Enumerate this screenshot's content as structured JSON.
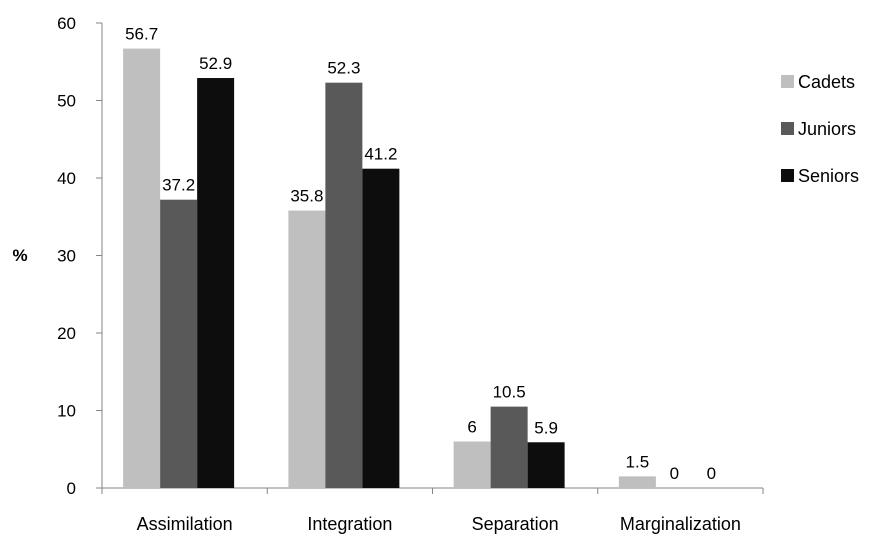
{
  "chart_data": {
    "type": "bar",
    "title": "",
    "xlabel": "",
    "ylabel": "%",
    "ylim": [
      0,
      60
    ],
    "yticks": [
      0,
      10,
      20,
      30,
      40,
      50,
      60
    ],
    "categories": [
      "Assimilation",
      "Integration",
      "Separation",
      "Marginalization"
    ],
    "series": [
      {
        "name": "Cadets",
        "color": "#bfbfbf",
        "values": [
          56.7,
          35.8,
          6,
          1.5
        ]
      },
      {
        "name": "Juniors",
        "color": "#595959",
        "values": [
          37.2,
          52.3,
          10.5,
          0
        ]
      },
      {
        "name": "Seniors",
        "color": "#0d0d0d",
        "values": [
          52.9,
          41.2,
          5.9,
          0
        ]
      }
    ],
    "data_labels": [
      [
        "56.7",
        "37.2",
        "52.9"
      ],
      [
        "35.8",
        "52.3",
        "41.2"
      ],
      [
        "6",
        "10.5",
        "5.9"
      ],
      [
        "1.5",
        "0",
        "0"
      ]
    ],
    "legend_position": "right",
    "grid": false
  }
}
